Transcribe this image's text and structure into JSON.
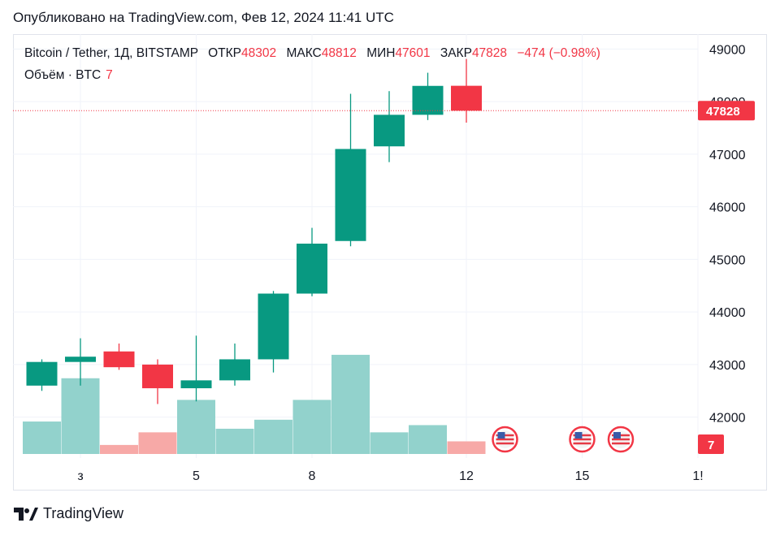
{
  "header": {
    "published": "Опубликовано на TradingView.com, Фев 12, 2024 11:41 UTC"
  },
  "legend": {
    "symbol": "Bitcoin / Tether, 1Д, BITSTAMP",
    "open_label": "ОТКР",
    "open": "48302",
    "high_label": "МАКС",
    "high": "48812",
    "low_label": "МИН",
    "low": "47601",
    "close_label": "ЗАКР",
    "close": "47828",
    "change": "−474 (−0.98%)",
    "volume_label": "Объём · BTC",
    "volume_value": "7"
  },
  "price_tag": "47828",
  "volume_tag": "7",
  "brand": {
    "name": "TradingView"
  },
  "colors": {
    "up": "#089981",
    "down": "#f23645",
    "up_vol": "#92d2cc",
    "down_vol": "#f7a9a7",
    "grid": "#f0f3fa"
  },
  "chart_data": {
    "type": "candlestick",
    "y_ticks": [
      42000,
      43000,
      44000,
      45000,
      46000,
      47000,
      48000,
      49000
    ],
    "y_tick_labels": [
      "42000",
      "43000",
      "44000",
      "45000",
      "46000",
      "47000",
      "48000",
      "49000"
    ],
    "ylim": [
      41300,
      49300
    ],
    "x_ticks": [
      {
        "day": 2,
        "label": "з"
      },
      {
        "day": 5,
        "label": "5"
      },
      {
        "day": 8,
        "label": "8"
      },
      {
        "day": 12,
        "label": "12"
      },
      {
        "day": 15,
        "label": "15"
      },
      {
        "day": 18,
        "label": "1!"
      }
    ],
    "candles": [
      {
        "day": 1,
        "open": 42600,
        "high": 43100,
        "low": 42500,
        "close": 43050
      },
      {
        "day": 2,
        "open": 43050,
        "high": 43500,
        "low": 42600,
        "close": 43150
      },
      {
        "day": 3,
        "open": 43250,
        "high": 43400,
        "low": 42900,
        "close": 42950
      },
      {
        "day": 4,
        "open": 43000,
        "high": 43100,
        "low": 42250,
        "close": 42550
      },
      {
        "day": 5,
        "open": 42550,
        "high": 43550,
        "low": 42300,
        "close": 42700
      },
      {
        "day": 6,
        "open": 42700,
        "high": 43400,
        "low": 42600,
        "close": 43100
      },
      {
        "day": 7,
        "open": 43100,
        "high": 44400,
        "low": 42850,
        "close": 44350
      },
      {
        "day": 8,
        "open": 44350,
        "high": 45600,
        "low": 44300,
        "close": 45300
      },
      {
        "day": 9,
        "open": 45350,
        "high": 48150,
        "low": 45250,
        "close": 47100
      },
      {
        "day": 10,
        "open": 47150,
        "high": 48200,
        "low": 46850,
        "close": 47750
      },
      {
        "day": 11,
        "open": 47750,
        "high": 48550,
        "low": 47650,
        "close": 48300
      },
      {
        "day": 12,
        "open": 48302,
        "high": 48812,
        "low": 47601,
        "close": 47828
      }
    ],
    "volume": [
      {
        "day": 1,
        "value": 18,
        "up": true
      },
      {
        "day": 2,
        "value": 42,
        "up": true
      },
      {
        "day": 3,
        "value": 5,
        "up": false
      },
      {
        "day": 4,
        "value": 12,
        "up": false
      },
      {
        "day": 5,
        "value": 30,
        "up": true
      },
      {
        "day": 6,
        "value": 14,
        "up": true
      },
      {
        "day": 7,
        "value": 19,
        "up": true
      },
      {
        "day": 8,
        "value": 30,
        "up": true
      },
      {
        "day": 9,
        "value": 55,
        "up": true
      },
      {
        "day": 10,
        "value": 12,
        "up": true
      },
      {
        "day": 11,
        "value": 16,
        "up": true
      },
      {
        "day": 12,
        "value": 7,
        "up": false
      }
    ],
    "events": [
      {
        "day": 13
      },
      {
        "day": 15
      },
      {
        "day": 16
      }
    ]
  }
}
